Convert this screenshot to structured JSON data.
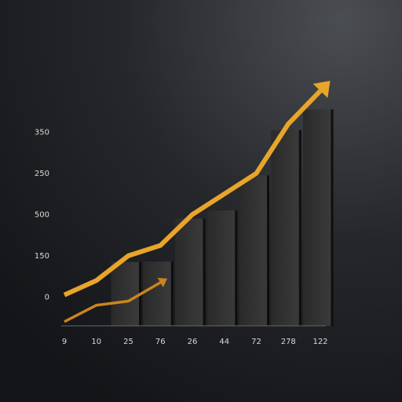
{
  "chart_data": {
    "type": "line",
    "categories": [
      "9",
      "10",
      "25",
      "76",
      "26",
      "44",
      "72",
      "278",
      "122"
    ],
    "ylim": [
      -0.7,
      5.3
    ],
    "yticks": [
      {
        "value": 0,
        "label": "0"
      },
      {
        "value": 1,
        "label": "150"
      },
      {
        "value": 2,
        "label": "500"
      },
      {
        "value": 3,
        "label": "250"
      },
      {
        "value": 4,
        "label": "350"
      }
    ],
    "bars": {
      "color": "#333333",
      "values": [
        null,
        null,
        0.85,
        0.86,
        1.9,
        2.1,
        2.95,
        4.05,
        4.55
      ]
    },
    "series": [
      {
        "color": "#e8a52a",
        "values": [
          0.05,
          0.4,
          1.0,
          1.25,
          2.0,
          2.5,
          3.0,
          4.2,
          5.0
        ]
      },
      {
        "color": "#c9861f",
        "values": [
          -0.6,
          -0.2,
          -0.1,
          0.35,
          null,
          null,
          null,
          null,
          null
        ]
      }
    ]
  }
}
